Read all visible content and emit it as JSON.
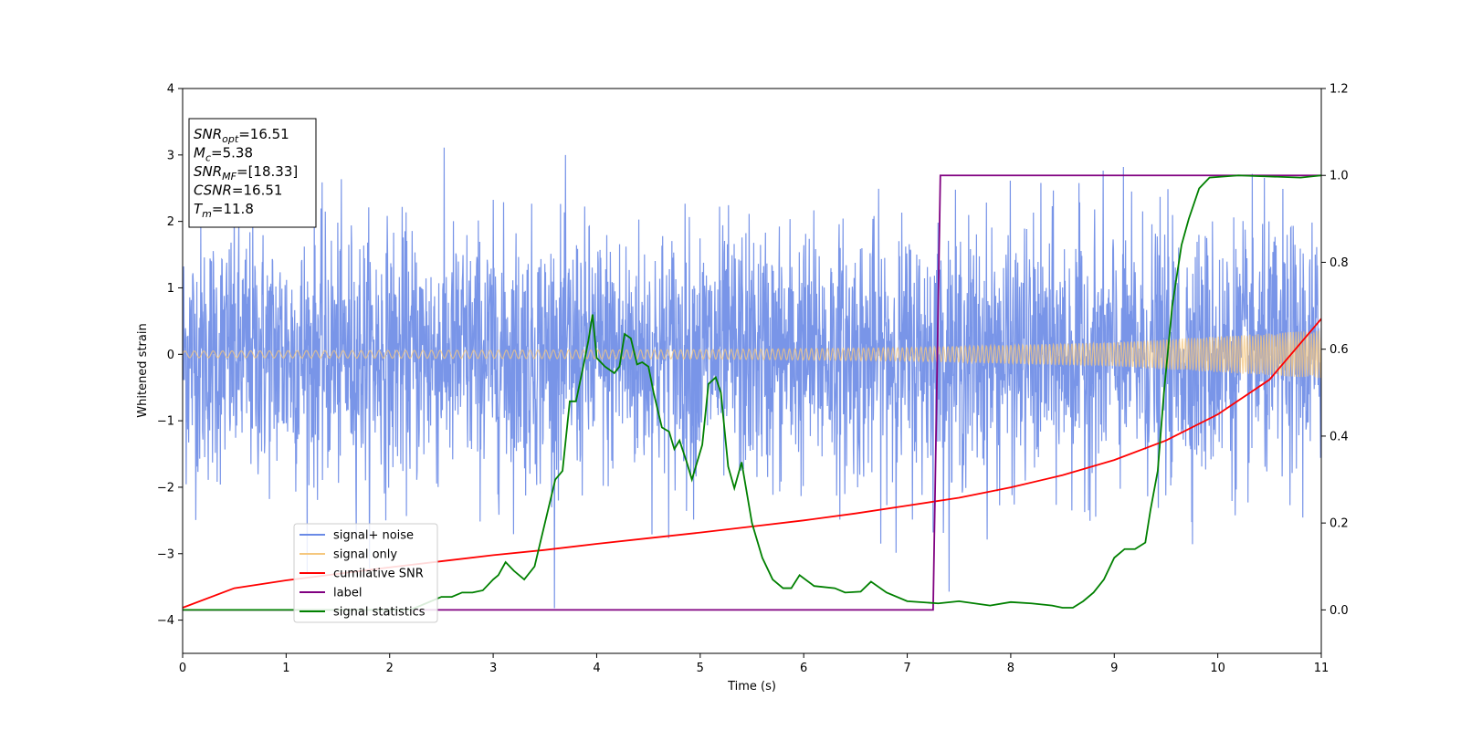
{
  "chart_data": {
    "type": "line",
    "xlabel": "Time (s)",
    "ylabel": "Whitened strain",
    "xlim": [
      0,
      11
    ],
    "ylim": [
      -4.5,
      4
    ],
    "y2lim": [
      -0.1,
      1.2
    ],
    "x_ticks": [
      "0",
      "1",
      "2",
      "3",
      "4",
      "5",
      "6",
      "7",
      "8",
      "9",
      "10",
      "11"
    ],
    "y_ticks": [
      "−4",
      "−3",
      "−2",
      "−1",
      "0",
      "1",
      "2",
      "3",
      "4"
    ],
    "y2_ticks": [
      "0.0",
      "0.2",
      "0.4",
      "0.6",
      "0.8",
      "1.0",
      "1.2"
    ],
    "grid": false,
    "legend_position": "lower-left",
    "info_box": {
      "lines": [
        {
          "base": "SNR",
          "sub": "opt",
          "value": "=16.51"
        },
        {
          "base": "M",
          "sub": "c",
          "value": "=5.38"
        },
        {
          "base": "SNR",
          "sub": "MF",
          "value": "=[18.33]"
        },
        {
          "base": "CSNR",
          "sub": "",
          "value": "=16.51"
        },
        {
          "base": "T",
          "sub": "m",
          "value": "=11.8"
        }
      ]
    },
    "series": [
      {
        "name": "signal+ noise",
        "color": "#6a8ae6",
        "axis": "left",
        "kind": "noise",
        "noise_std": 0.95,
        "noise_clip": [
          -4.15,
          3.62
        ]
      },
      {
        "name": "signal only",
        "color": "#f5c77e",
        "axis": "left",
        "kind": "chirp",
        "amplitude": [
          [
            0,
            0.05
          ],
          [
            5,
            0.07
          ],
          [
            7,
            0.1
          ],
          [
            9,
            0.18
          ],
          [
            11,
            0.36
          ]
        ]
      },
      {
        "name": "cumilative SNR",
        "color": "#ff0000",
        "axis": "right",
        "points": [
          [
            0,
            0.005
          ],
          [
            0.5,
            0.05
          ],
          [
            1,
            0.068
          ],
          [
            1.5,
            0.083
          ],
          [
            2,
            0.098
          ],
          [
            2.5,
            0.112
          ],
          [
            3,
            0.126
          ],
          [
            3.5,
            0.138
          ],
          [
            4,
            0.152
          ],
          [
            4.5,
            0.165
          ],
          [
            5,
            0.178
          ],
          [
            5.5,
            0.192
          ],
          [
            6,
            0.206
          ],
          [
            6.5,
            0.222
          ],
          [
            7,
            0.24
          ],
          [
            7.5,
            0.258
          ],
          [
            8,
            0.282
          ],
          [
            8.5,
            0.31
          ],
          [
            9,
            0.345
          ],
          [
            9.5,
            0.39
          ],
          [
            10,
            0.45
          ],
          [
            10.5,
            0.53
          ],
          [
            11,
            0.67
          ]
        ]
      },
      {
        "name": "label",
        "color": "#800080",
        "axis": "right",
        "points": [
          [
            0,
            0
          ],
          [
            7.25,
            0
          ],
          [
            7.32,
            1.0
          ],
          [
            11,
            1.0
          ]
        ]
      },
      {
        "name": "signal statistics",
        "color": "#008000",
        "axis": "right",
        "points": [
          [
            0,
            0
          ],
          [
            2.2,
            0
          ],
          [
            2.4,
            0.02
          ],
          [
            2.5,
            0.03
          ],
          [
            2.6,
            0.03
          ],
          [
            2.7,
            0.04
          ],
          [
            2.8,
            0.04
          ],
          [
            2.9,
            0.045
          ],
          [
            3.0,
            0.07
          ],
          [
            3.05,
            0.08
          ],
          [
            3.12,
            0.11
          ],
          [
            3.2,
            0.09
          ],
          [
            3.3,
            0.07
          ],
          [
            3.4,
            0.1
          ],
          [
            3.5,
            0.2
          ],
          [
            3.6,
            0.3
          ],
          [
            3.67,
            0.32
          ],
          [
            3.74,
            0.48
          ],
          [
            3.8,
            0.48
          ],
          [
            3.87,
            0.56
          ],
          [
            3.92,
            0.62
          ],
          [
            3.96,
            0.68
          ],
          [
            4.0,
            0.58
          ],
          [
            4.08,
            0.56
          ],
          [
            4.17,
            0.545
          ],
          [
            4.22,
            0.56
          ],
          [
            4.27,
            0.635
          ],
          [
            4.33,
            0.625
          ],
          [
            4.39,
            0.565
          ],
          [
            4.44,
            0.57
          ],
          [
            4.5,
            0.56
          ],
          [
            4.55,
            0.5
          ],
          [
            4.63,
            0.42
          ],
          [
            4.7,
            0.41
          ],
          [
            4.75,
            0.37
          ],
          [
            4.8,
            0.39
          ],
          [
            4.87,
            0.34
          ],
          [
            4.92,
            0.3
          ],
          [
            5.02,
            0.38
          ],
          [
            5.08,
            0.52
          ],
          [
            5.15,
            0.535
          ],
          [
            5.2,
            0.5
          ],
          [
            5.27,
            0.33
          ],
          [
            5.33,
            0.28
          ],
          [
            5.4,
            0.34
          ],
          [
            5.5,
            0.2
          ],
          [
            5.6,
            0.12
          ],
          [
            5.7,
            0.07
          ],
          [
            5.8,
            0.05
          ],
          [
            5.88,
            0.05
          ],
          [
            5.96,
            0.08
          ],
          [
            6.1,
            0.055
          ],
          [
            6.3,
            0.05
          ],
          [
            6.4,
            0.04
          ],
          [
            6.55,
            0.042
          ],
          [
            6.65,
            0.065
          ],
          [
            6.8,
            0.04
          ],
          [
            7.0,
            0.02
          ],
          [
            7.3,
            0.015
          ],
          [
            7.5,
            0.02
          ],
          [
            7.8,
            0.01
          ],
          [
            8.0,
            0.018
          ],
          [
            8.2,
            0.015
          ],
          [
            8.4,
            0.01
          ],
          [
            8.5,
            0.005
          ],
          [
            8.6,
            0.005
          ],
          [
            8.7,
            0.02
          ],
          [
            8.8,
            0.04
          ],
          [
            8.9,
            0.07
          ],
          [
            9.0,
            0.12
          ],
          [
            9.1,
            0.14
          ],
          [
            9.2,
            0.14
          ],
          [
            9.3,
            0.155
          ],
          [
            9.35,
            0.23
          ],
          [
            9.42,
            0.32
          ],
          [
            9.48,
            0.5
          ],
          [
            9.56,
            0.7
          ],
          [
            9.65,
            0.84
          ],
          [
            9.72,
            0.9
          ],
          [
            9.82,
            0.97
          ],
          [
            9.92,
            0.995
          ],
          [
            10.2,
            1.0
          ],
          [
            10.8,
            0.995
          ],
          [
            11,
            1.0
          ]
        ]
      }
    ]
  }
}
